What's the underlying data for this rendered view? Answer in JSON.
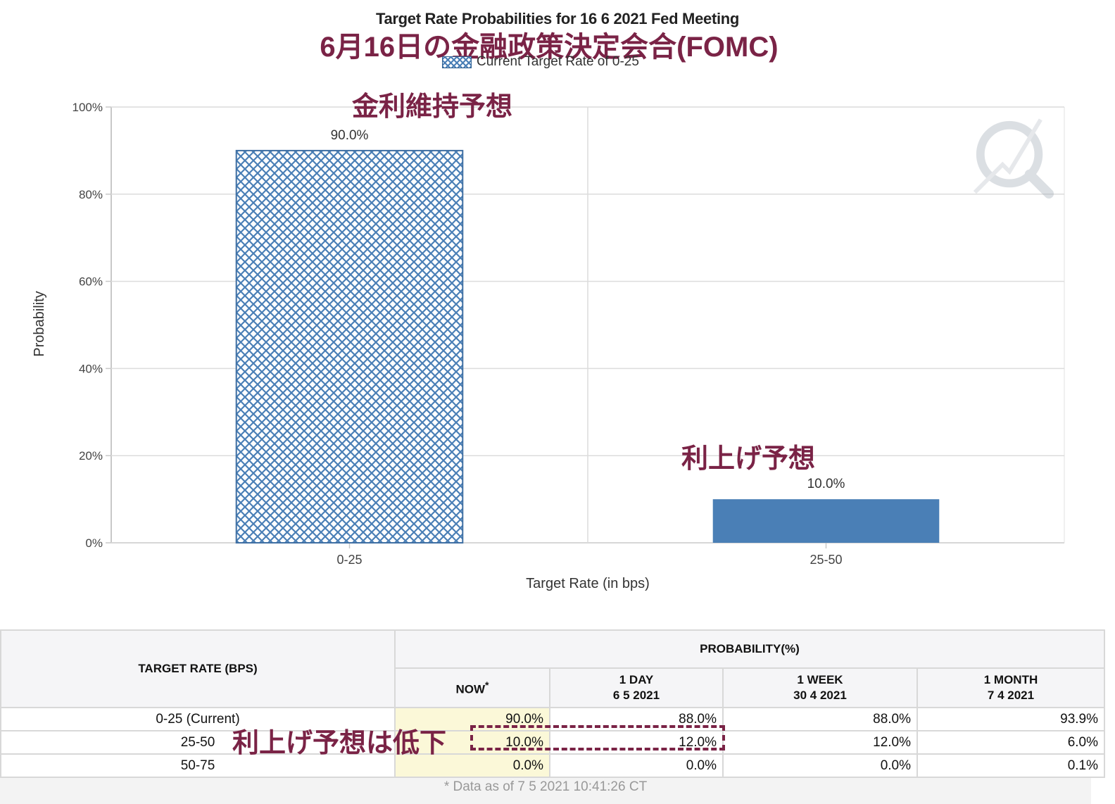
{
  "title": "Target Rate Probabilities for 16 6 2021 Fed Meeting",
  "headline_jp": "6月16日の金融政策決定会合(FOMC)",
  "legend_label": "Current Target Rate of 0-25",
  "annotations": {
    "hold": "金利維持予想",
    "hike": "利上げ予想",
    "hike_down": "利上げ予想は低下"
  },
  "colors": {
    "bar": "#4a7fb6",
    "accent_jp": "#7a2346",
    "now_column": "#fbf8d8"
  },
  "chart_data": {
    "type": "bar",
    "categories": [
      "0-25",
      "25-50"
    ],
    "values": [
      90.0,
      10.0
    ],
    "value_labels": [
      "90.0%",
      "10.0%"
    ],
    "patterned": [
      true,
      false
    ],
    "ylabel": "Probability",
    "xlabel": "Target Rate (in bps)",
    "ylim": [
      0,
      100
    ],
    "yticks": [
      0,
      20,
      40,
      60,
      80,
      100
    ],
    "ytick_labels": [
      "0%",
      "20%",
      "40%",
      "60%",
      "80%",
      "100%"
    ],
    "grid": true
  },
  "table": {
    "target_header": "TARGET RATE (BPS)",
    "prob_header": "PROBABILITY(%)",
    "columns": [
      {
        "line1": "NOW",
        "marker": "*",
        "line2": ""
      },
      {
        "line1": "1 DAY",
        "line2": "6 5 2021"
      },
      {
        "line1": "1 WEEK",
        "line2": "30 4 2021"
      },
      {
        "line1": "1 MONTH",
        "line2": "7 4 2021"
      }
    ],
    "rows": [
      {
        "rate": "0-25 (Current)",
        "values": [
          "90.0%",
          "88.0%",
          "88.0%",
          "93.9%"
        ]
      },
      {
        "rate": "25-50",
        "values": [
          "10.0%",
          "12.0%",
          "12.0%",
          "6.0%"
        ]
      },
      {
        "rate": "50-75",
        "values": [
          "0.0%",
          "0.0%",
          "0.0%",
          "0.1%"
        ]
      }
    ],
    "footnote": "* Data as of 7 5 2021 10:41:26 CT"
  }
}
